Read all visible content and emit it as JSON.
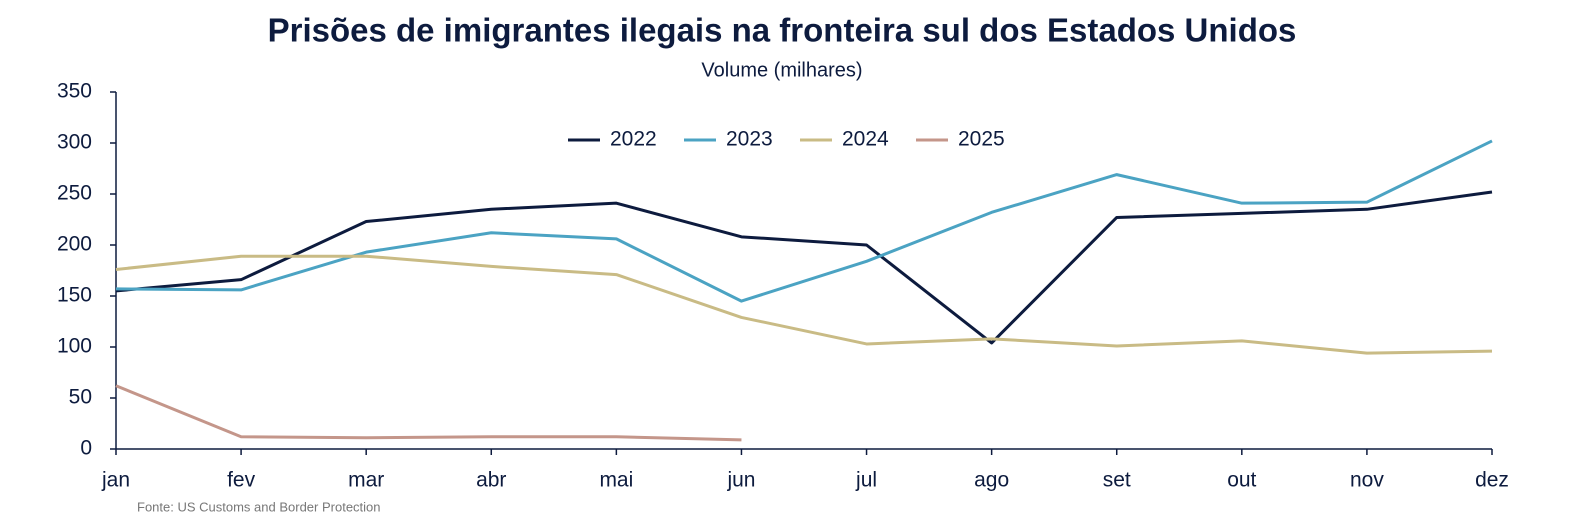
{
  "chart_data": {
    "type": "line",
    "title": "Prisões de imigrantes ilegais na fronteira sul dos Estados Unidos",
    "subtitle": "Volume (milhares)",
    "source": "Fonte: US Customs and Border Protection",
    "categories": [
      "jan",
      "fev",
      "mar",
      "abr",
      "mai",
      "jun",
      "jul",
      "ago",
      "set",
      "out",
      "nov",
      "dez"
    ],
    "series": [
      {
        "name": "2022",
        "color": "#0d1b3e",
        "values": [
          155,
          166,
          223,
          235,
          241,
          208,
          200,
          104,
          227,
          231,
          235,
          252
        ]
      },
      {
        "name": "2023",
        "color": "#4ba3c3",
        "values": [
          157,
          156,
          193,
          212,
          206,
          145,
          184,
          232,
          269,
          241,
          242,
          302
        ]
      },
      {
        "name": "2024",
        "color": "#c9bb85",
        "values": [
          176,
          189,
          189,
          179,
          171,
          129,
          103,
          108,
          101,
          106,
          94,
          96
        ]
      },
      {
        "name": "2025",
        "color": "#c4968a",
        "values": [
          62,
          12,
          11,
          12,
          12,
          9,
          null,
          null,
          null,
          null,
          null,
          null
        ]
      }
    ],
    "ylim": [
      0,
      350
    ],
    "yticks": [
      0,
      50,
      100,
      150,
      200,
      250,
      300,
      350
    ],
    "grid": false,
    "legend": "top"
  }
}
